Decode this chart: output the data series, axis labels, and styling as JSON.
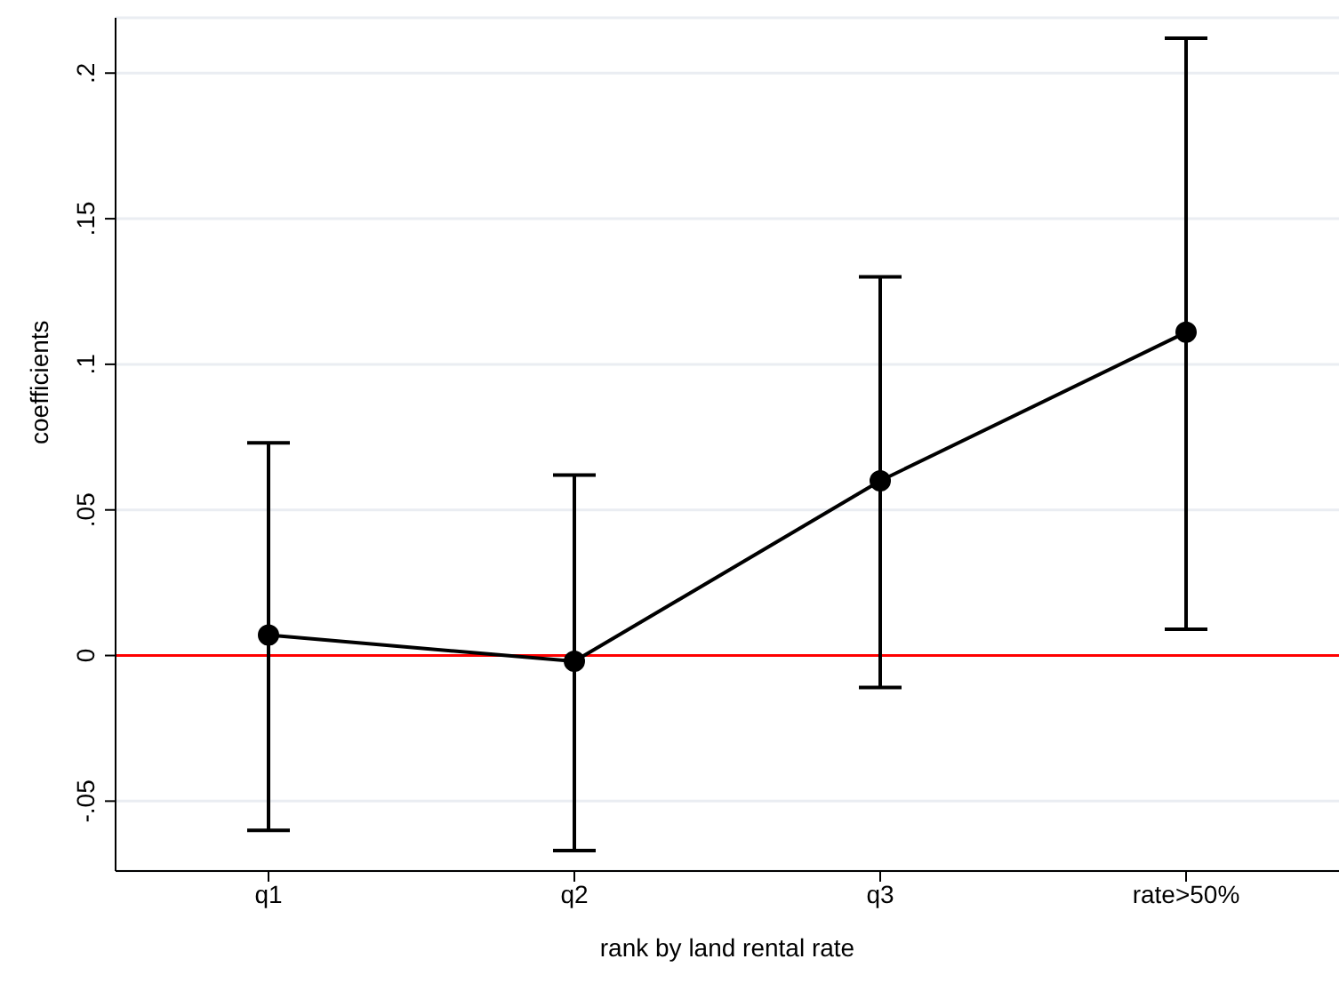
{
  "chart_data": {
    "type": "line",
    "xlabel": "rank by land rental rate",
    "ylabel": "coefficients",
    "categories": [
      "q1",
      "q2",
      "q3",
      "rate>50%"
    ],
    "series": [
      {
        "color": "#000000",
        "values": [
          0.007,
          -0.002,
          0.06,
          0.111
        ],
        "errors": [
          [
            -0.06,
            0.073
          ],
          [
            -0.067,
            0.062
          ],
          [
            -0.011,
            0.13
          ],
          [
            0.009,
            0.212
          ]
        ]
      }
    ],
    "ylim": [
      -0.074,
      0.219
    ],
    "yticks": [
      {
        "value": -0.05,
        "label": "-.05"
      },
      {
        "value": 0,
        "label": "0"
      },
      {
        "value": 0.05,
        "label": ".05"
      },
      {
        "value": 0.1,
        "label": ".1"
      },
      {
        "value": 0.15,
        "label": ".15"
      },
      {
        "value": 0.2,
        "label": ".2"
      }
    ],
    "ref_lines": [
      {
        "axis": "y",
        "value": 0,
        "color": "#ff0000"
      }
    ],
    "grid": "y",
    "marker": "circle",
    "line_style": "solid"
  }
}
